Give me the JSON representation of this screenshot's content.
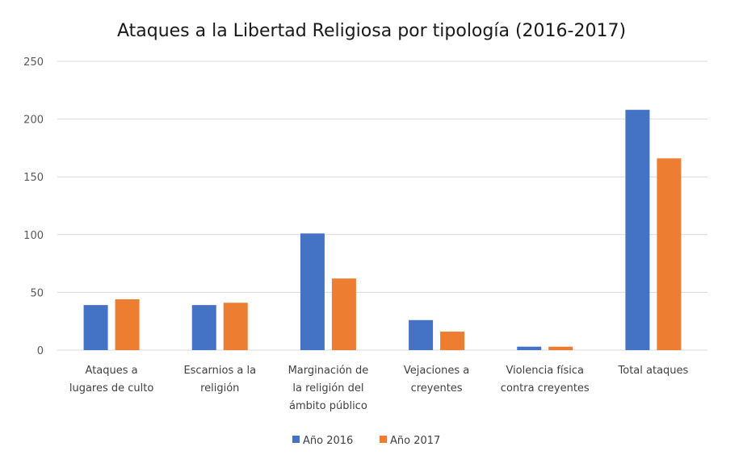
{
  "chart_data": {
    "type": "bar",
    "title": "Ataques a la Libertad Religiosa por tipología (2016-2017)",
    "xlabel": "",
    "ylabel": "",
    "ylim": [
      0,
      250
    ],
    "yticks": [
      0,
      50,
      100,
      150,
      200,
      250
    ],
    "grid": true,
    "legend_position": "bottom",
    "categories": [
      [
        "Ataques a",
        "lugares de culto"
      ],
      [
        "Escarnios a la",
        "religión"
      ],
      [
        "Marginación de",
        "la religión del",
        "ámbito público"
      ],
      [
        "Vejaciones a",
        "creyentes"
      ],
      [
        "Violencia física",
        "contra creyentes"
      ],
      [
        "Total ataques"
      ]
    ],
    "series": [
      {
        "name": "Año 2016",
        "color": "#4472c4",
        "values": [
          39,
          39,
          101,
          26,
          3,
          208
        ]
      },
      {
        "name": "Año 2017",
        "color": "#ed7d31",
        "values": [
          44,
          41,
          62,
          16,
          3,
          166
        ]
      }
    ]
  }
}
